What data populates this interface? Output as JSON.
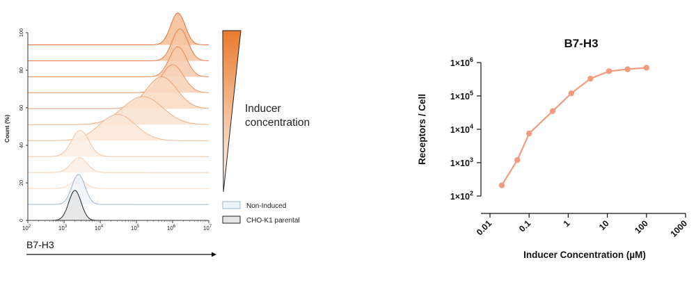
{
  "histogram": {
    "xlabel": "B7-H3",
    "ylabel": "Count (%)",
    "x_ticks": [
      {
        "base": "10",
        "exp": "2",
        "value": 100
      },
      {
        "base": "10",
        "exp": "3",
        "value": 1000
      },
      {
        "base": "10",
        "exp": "4",
        "value": 10000
      },
      {
        "base": "10",
        "exp": "5",
        "value": 100000
      },
      {
        "base": "10",
        "exp": "6",
        "value": 1000000
      },
      {
        "base": "10",
        "exp": "7",
        "value": 10000000
      }
    ],
    "y_ticks": [
      "0",
      "20",
      "40",
      "60",
      "80",
      "100"
    ],
    "wedge_label_line1": "Inducer",
    "wedge_label_line2": "concentration",
    "legend": [
      {
        "label": "Non-Induced",
        "fill": "#eef3f9",
        "stroke": "#9bb4cf"
      },
      {
        "label": "CHO-K1 parental",
        "fill": "#e4e4e4",
        "stroke": "#222222"
      }
    ],
    "colors": {
      "accent": "#ea7a2c",
      "wedge_dark": "#ea7a2c",
      "wedge_light": "#ffffff"
    }
  },
  "chart_data": [
    {
      "type": "area",
      "title": "",
      "xlabel": "B7-H3",
      "ylabel": "Count (%)",
      "x_scale": "log",
      "xlim": [
        100,
        10000000
      ],
      "ylim": [
        0,
        100
      ],
      "note_stacking": "offset histograms stacked vertically",
      "series": [
        {
          "name": "CHO-K1 parental",
          "peak": 2000,
          "width": 0.17,
          "baseline": 0,
          "height": 16,
          "stroke": "#222222",
          "fill": "#e4e4e4"
        },
        {
          "name": "Non-Induced",
          "peak": 2500,
          "width": 0.18,
          "baseline": 8.5,
          "height": 16,
          "stroke": "#9bb4cf",
          "fill": "#eef3f9"
        },
        {
          "peak": 2500,
          "width": 0.2,
          "baseline": 17,
          "height": 5,
          "stroke": "#f6d9c4",
          "fill": "#fdf3ec"
        },
        {
          "peak": 2600,
          "width": 0.22,
          "baseline": 25.5,
          "height": 8,
          "stroke": "#f3cfb3",
          "fill": "#fdf0e6"
        },
        {
          "peak": 2800,
          "width": 0.24,
          "baseline": 34,
          "height": 14,
          "stroke": "#f1c5a4",
          "fill": "#fcece0"
        },
        {
          "peak": 30000,
          "width": 0.5,
          "baseline": 42.5,
          "height": 14,
          "stroke": "#efba94",
          "fill": "#fbe6d6"
        },
        {
          "peak": 150000,
          "width": 0.55,
          "baseline": 51,
          "height": 15,
          "stroke": "#edb084",
          "fill": "#fae0cd"
        },
        {
          "peak": 500000,
          "width": 0.42,
          "baseline": 59.5,
          "height": 17,
          "stroke": "#eba373",
          "fill": "#f9d9c2"
        },
        {
          "peak": 1000000,
          "width": 0.3,
          "baseline": 68,
          "height": 15,
          "stroke": "#e99563",
          "fill": "#f8d1b6"
        },
        {
          "peak": 1400000,
          "width": 0.24,
          "baseline": 76.5,
          "height": 16,
          "stroke": "#e88752",
          "fill": "#f7caab"
        },
        {
          "peak": 1600000,
          "width": 0.22,
          "baseline": 85,
          "height": 17,
          "stroke": "#e77a43",
          "fill": "#f6c3a0"
        },
        {
          "peak": 1400000,
          "width": 0.2,
          "baseline": 93.5,
          "height": 17,
          "stroke": "#e66f36",
          "fill": "#f5bc95"
        }
      ]
    },
    {
      "type": "line",
      "title": "B7-H3",
      "xlabel": "Inducer Concentration (µM)",
      "ylabel": "Receptors / Cell",
      "x_scale": "log",
      "y_scale": "log",
      "xlim": [
        0.01,
        1000
      ],
      "ylim": [
        100,
        1000000
      ],
      "x_tick_labels": [
        "0.01",
        "0.1",
        "1",
        "10",
        "100",
        "1000"
      ],
      "y_tick_labels": [
        {
          "mant": "1×10",
          "exp": "2"
        },
        {
          "mant": "1×10",
          "exp": "3"
        },
        {
          "mant": "1×10",
          "exp": "4"
        },
        {
          "mant": "1×10",
          "exp": "5"
        },
        {
          "mant": "1×10",
          "exp": "6"
        }
      ],
      "color": "#f19b7f",
      "x": [
        0.02,
        0.05,
        0.1,
        0.4,
        1.2,
        3.7,
        11,
        33,
        100
      ],
      "y": [
        210,
        1200,
        7500,
        35000,
        120000,
        330000,
        550000,
        630000,
        700000
      ]
    }
  ]
}
